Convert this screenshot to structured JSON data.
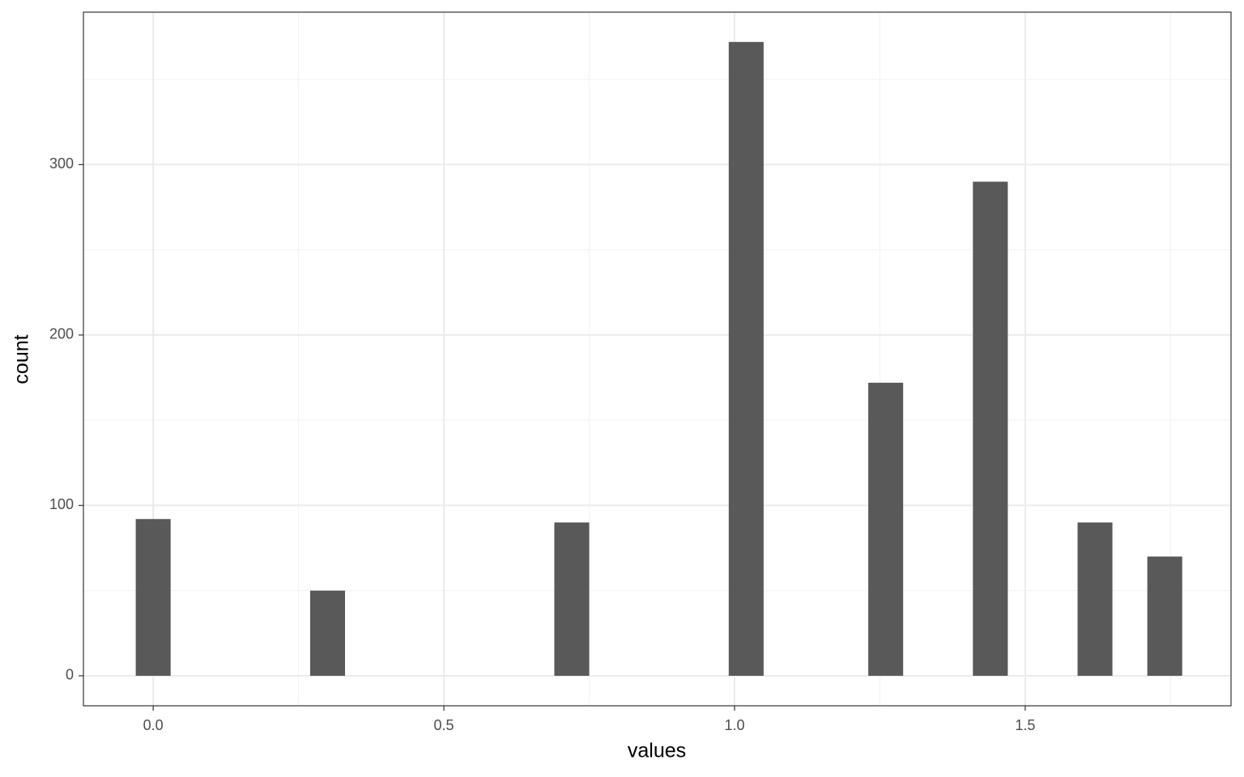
{
  "chart_data": {
    "type": "histogram",
    "x_label": "values",
    "y_label": "count",
    "bins": [
      -0.03,
      0.03,
      0.09,
      0.15,
      0.21,
      0.27,
      0.33,
      0.39,
      0.45,
      0.51,
      0.57,
      0.63,
      0.69,
      0.75,
      0.81,
      0.87,
      0.93,
      0.99,
      1.05,
      1.11,
      1.17,
      1.23,
      1.29,
      1.35,
      1.41,
      1.47,
      1.53,
      1.59,
      1.65,
      1.71,
      1.77
    ],
    "counts": [
      92,
      0,
      0,
      0,
      0,
      50,
      0,
      0,
      0,
      0,
      0,
      0,
      90,
      0,
      0,
      0,
      0,
      372,
      0,
      0,
      0,
      172,
      0,
      0,
      290,
      0,
      0,
      90,
      0,
      70
    ],
    "color": "#595959",
    "xlim": [
      -0.12,
      1.854
    ],
    "ylim": [
      -17.6,
      389.5
    ],
    "xticks": [
      {
        "value": 0,
        "label": "0.0"
      },
      0.5,
      {
        "value": 1,
        "label": "1.0"
      },
      1.5
    ],
    "yticks": [
      0,
      100,
      200,
      300
    ],
    "x_minor_ticks": [
      0.25,
      0.75,
      1.25,
      1.75
    ],
    "y_minor_ticks": [
      50,
      150,
      250,
      350
    ],
    "grid": true
  }
}
